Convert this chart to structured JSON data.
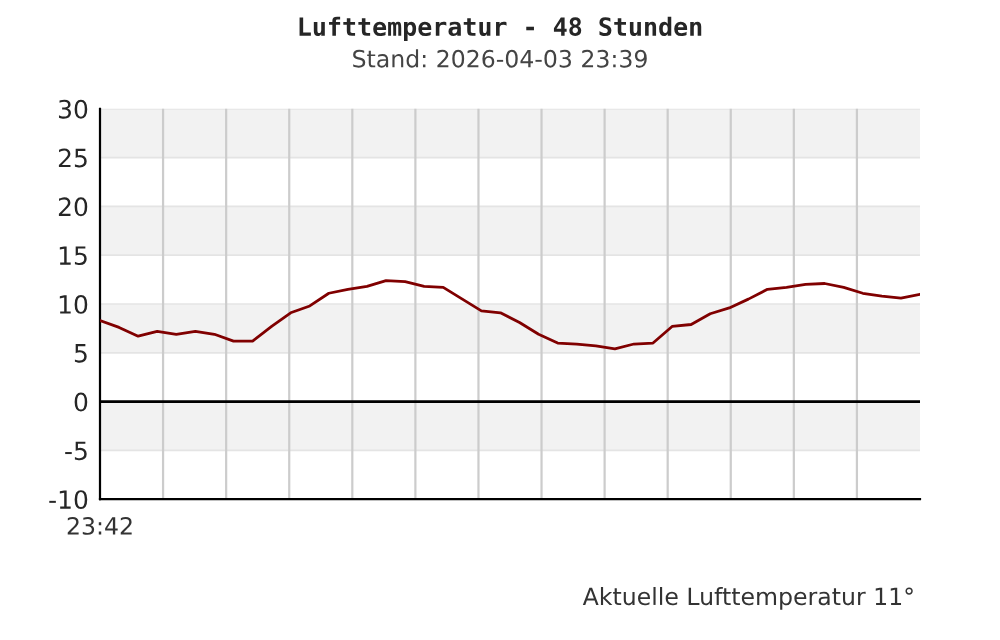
{
  "chart_data": {
    "type": "line",
    "title": "Lufttemperatur - 48 Stunden",
    "subtitle": "Stand: 2026-04-03 23:39",
    "annotations": [
      "23:42",
      "Aktuelle Lufttemperatur 11°"
    ],
    "categories": [
      null,
      null,
      null,
      null,
      null,
      null,
      null,
      null,
      null,
      null,
      null,
      null,
      null,
      null,
      null,
      null,
      null,
      null,
      null,
      null,
      null,
      null,
      null,
      null,
      null,
      null,
      null,
      null,
      null,
      null,
      null,
      null,
      null,
      null,
      null,
      null,
      null,
      null,
      null,
      null,
      null,
      null,
      null,
      null
    ],
    "series": [
      {
        "color": "#800000",
        "values": [
          8.3,
          7.6,
          6.7,
          7.2,
          6.9,
          7.2,
          6.9,
          6.2,
          6.2,
          7.7,
          9.1,
          9.8,
          11.1,
          11.5,
          11.8,
          12.4,
          12.3,
          11.8,
          11.7,
          10.5,
          9.3,
          9.1,
          8.1,
          6.9,
          6.0,
          5.9,
          5.7,
          5.4,
          5.9,
          6.0,
          7.7,
          7.9,
          9.0,
          9.6,
          10.5,
          11.5,
          11.7,
          12.0,
          12.1,
          11.7,
          11.1,
          10.8,
          10.6,
          11.0
        ]
      }
    ],
    "ylim": [
      -10,
      30
    ],
    "yticks": [
      -10,
      -5,
      0,
      5,
      10,
      15,
      20,
      25,
      30
    ],
    "ref_lines": [
      {
        "axis": "y",
        "value": 0,
        "color": "#000000"
      }
    ],
    "bands": [
      {
        "axis": "y",
        "from": 25,
        "to": 30,
        "color": "#f2f2f2"
      },
      {
        "axis": "y",
        "from": 15,
        "to": 20,
        "color": "#f2f2f2"
      },
      {
        "axis": "y",
        "from": 5,
        "to": 10,
        "color": "#f2f2f2"
      },
      {
        "axis": "y",
        "from": -5,
        "to": 0,
        "color": "#f2f2f2"
      }
    ],
    "grid": true,
    "legend": false,
    "line_style": "solid",
    "marker": "none"
  }
}
